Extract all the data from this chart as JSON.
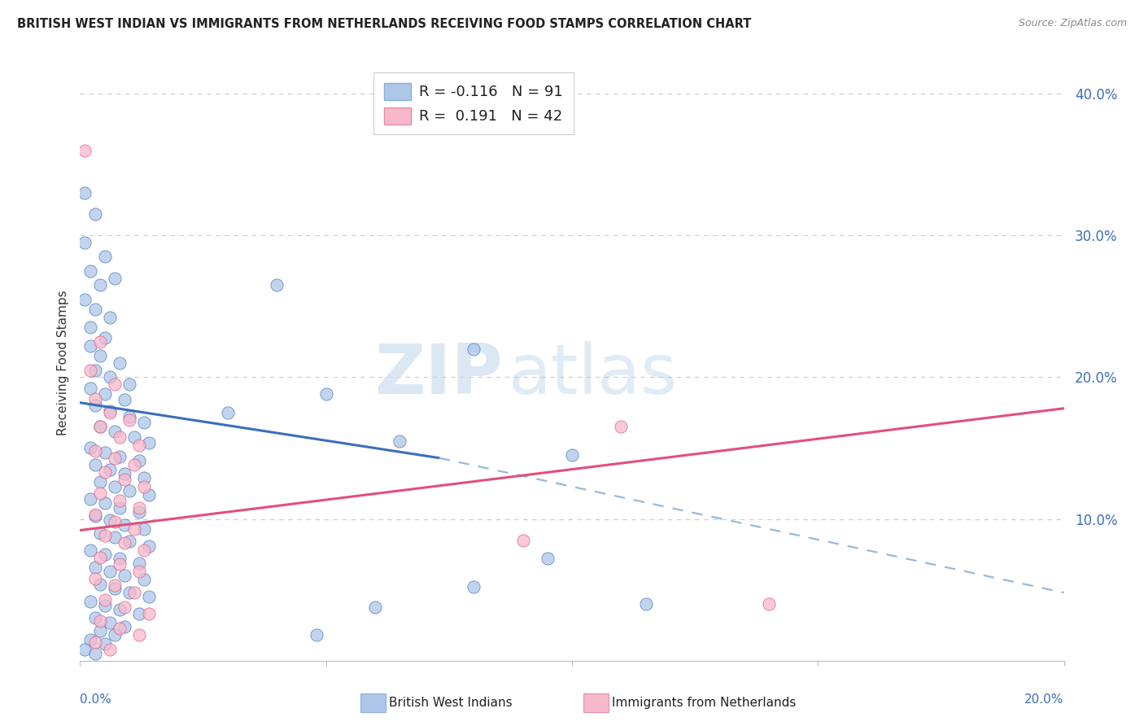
{
  "title": "BRITISH WEST INDIAN VS IMMIGRANTS FROM NETHERLANDS RECEIVING FOOD STAMPS CORRELATION CHART",
  "source": "Source: ZipAtlas.com",
  "ylabel": "Receiving Food Stamps",
  "right_yticks": [
    "40.0%",
    "30.0%",
    "20.0%",
    "10.0%"
  ],
  "right_ytick_vals": [
    0.4,
    0.3,
    0.2,
    0.1
  ],
  "blue_color": "#aec6e8",
  "pink_color": "#f7b8cb",
  "blue_line_color": "#3a6fba",
  "pink_line_color": "#e0507a",
  "dashed_line_color": "#9ab8d8",
  "watermark_zip": "ZIP",
  "watermark_atlas": "atlas",
  "xmin": 0.0,
  "xmax": 0.2,
  "ymin": 0.0,
  "ymax": 0.42,
  "blue_scatter": [
    [
      0.001,
      0.33
    ],
    [
      0.003,
      0.315
    ],
    [
      0.001,
      0.295
    ],
    [
      0.005,
      0.285
    ],
    [
      0.002,
      0.275
    ],
    [
      0.007,
      0.27
    ],
    [
      0.004,
      0.265
    ],
    [
      0.001,
      0.255
    ],
    [
      0.003,
      0.248
    ],
    [
      0.006,
      0.242
    ],
    [
      0.002,
      0.235
    ],
    [
      0.005,
      0.228
    ],
    [
      0.002,
      0.222
    ],
    [
      0.004,
      0.215
    ],
    [
      0.008,
      0.21
    ],
    [
      0.003,
      0.205
    ],
    [
      0.006,
      0.2
    ],
    [
      0.01,
      0.195
    ],
    [
      0.002,
      0.192
    ],
    [
      0.005,
      0.188
    ],
    [
      0.009,
      0.184
    ],
    [
      0.003,
      0.18
    ],
    [
      0.006,
      0.176
    ],
    [
      0.01,
      0.172
    ],
    [
      0.013,
      0.168
    ],
    [
      0.004,
      0.165
    ],
    [
      0.007,
      0.162
    ],
    [
      0.011,
      0.158
    ],
    [
      0.014,
      0.154
    ],
    [
      0.002,
      0.15
    ],
    [
      0.005,
      0.147
    ],
    [
      0.008,
      0.144
    ],
    [
      0.012,
      0.141
    ],
    [
      0.003,
      0.138
    ],
    [
      0.006,
      0.135
    ],
    [
      0.009,
      0.132
    ],
    [
      0.013,
      0.129
    ],
    [
      0.004,
      0.126
    ],
    [
      0.007,
      0.123
    ],
    [
      0.01,
      0.12
    ],
    [
      0.014,
      0.117
    ],
    [
      0.002,
      0.114
    ],
    [
      0.005,
      0.111
    ],
    [
      0.008,
      0.108
    ],
    [
      0.012,
      0.105
    ],
    [
      0.003,
      0.102
    ],
    [
      0.006,
      0.099
    ],
    [
      0.009,
      0.096
    ],
    [
      0.013,
      0.093
    ],
    [
      0.004,
      0.09
    ],
    [
      0.007,
      0.087
    ],
    [
      0.01,
      0.084
    ],
    [
      0.014,
      0.081
    ],
    [
      0.002,
      0.078
    ],
    [
      0.005,
      0.075
    ],
    [
      0.008,
      0.072
    ],
    [
      0.012,
      0.069
    ],
    [
      0.003,
      0.066
    ],
    [
      0.006,
      0.063
    ],
    [
      0.009,
      0.06
    ],
    [
      0.013,
      0.057
    ],
    [
      0.004,
      0.054
    ],
    [
      0.007,
      0.051
    ],
    [
      0.01,
      0.048
    ],
    [
      0.014,
      0.045
    ],
    [
      0.002,
      0.042
    ],
    [
      0.005,
      0.039
    ],
    [
      0.008,
      0.036
    ],
    [
      0.012,
      0.033
    ],
    [
      0.003,
      0.03
    ],
    [
      0.006,
      0.027
    ],
    [
      0.009,
      0.024
    ],
    [
      0.004,
      0.021
    ],
    [
      0.007,
      0.018
    ],
    [
      0.002,
      0.015
    ],
    [
      0.005,
      0.012
    ],
    [
      0.001,
      0.008
    ],
    [
      0.003,
      0.005
    ],
    [
      0.08,
      0.22
    ],
    [
      0.04,
      0.265
    ],
    [
      0.03,
      0.175
    ],
    [
      0.05,
      0.188
    ],
    [
      0.065,
      0.155
    ],
    [
      0.1,
      0.145
    ],
    [
      0.115,
      0.04
    ],
    [
      0.08,
      0.052
    ],
    [
      0.095,
      0.072
    ],
    [
      0.06,
      0.038
    ],
    [
      0.048,
      0.018
    ]
  ],
  "pink_scatter": [
    [
      0.001,
      0.36
    ],
    [
      0.004,
      0.225
    ],
    [
      0.002,
      0.205
    ],
    [
      0.007,
      0.195
    ],
    [
      0.003,
      0.185
    ],
    [
      0.006,
      0.175
    ],
    [
      0.01,
      0.17
    ],
    [
      0.004,
      0.165
    ],
    [
      0.008,
      0.158
    ],
    [
      0.012,
      0.152
    ],
    [
      0.003,
      0.148
    ],
    [
      0.007,
      0.143
    ],
    [
      0.011,
      0.138
    ],
    [
      0.005,
      0.133
    ],
    [
      0.009,
      0.128
    ],
    [
      0.013,
      0.123
    ],
    [
      0.004,
      0.118
    ],
    [
      0.008,
      0.113
    ],
    [
      0.012,
      0.108
    ],
    [
      0.003,
      0.103
    ],
    [
      0.007,
      0.098
    ],
    [
      0.011,
      0.093
    ],
    [
      0.005,
      0.088
    ],
    [
      0.009,
      0.083
    ],
    [
      0.013,
      0.078
    ],
    [
      0.004,
      0.073
    ],
    [
      0.008,
      0.068
    ],
    [
      0.012,
      0.063
    ],
    [
      0.003,
      0.058
    ],
    [
      0.007,
      0.053
    ],
    [
      0.011,
      0.048
    ],
    [
      0.005,
      0.043
    ],
    [
      0.009,
      0.038
    ],
    [
      0.014,
      0.033
    ],
    [
      0.004,
      0.028
    ],
    [
      0.008,
      0.023
    ],
    [
      0.012,
      0.018
    ],
    [
      0.003,
      0.013
    ],
    [
      0.006,
      0.008
    ],
    [
      0.09,
      0.085
    ],
    [
      0.14,
      0.04
    ],
    [
      0.11,
      0.165
    ]
  ],
  "blue_line": {
    "x0": 0.0,
    "y0": 0.182,
    "x1": 0.073,
    "y1": 0.143
  },
  "pink_line": {
    "x0": 0.0,
    "y0": 0.092,
    "x1": 0.2,
    "y1": 0.178
  },
  "dashed_line": {
    "x0": 0.073,
    "y0": 0.143,
    "x1": 0.2,
    "y1": 0.048
  }
}
